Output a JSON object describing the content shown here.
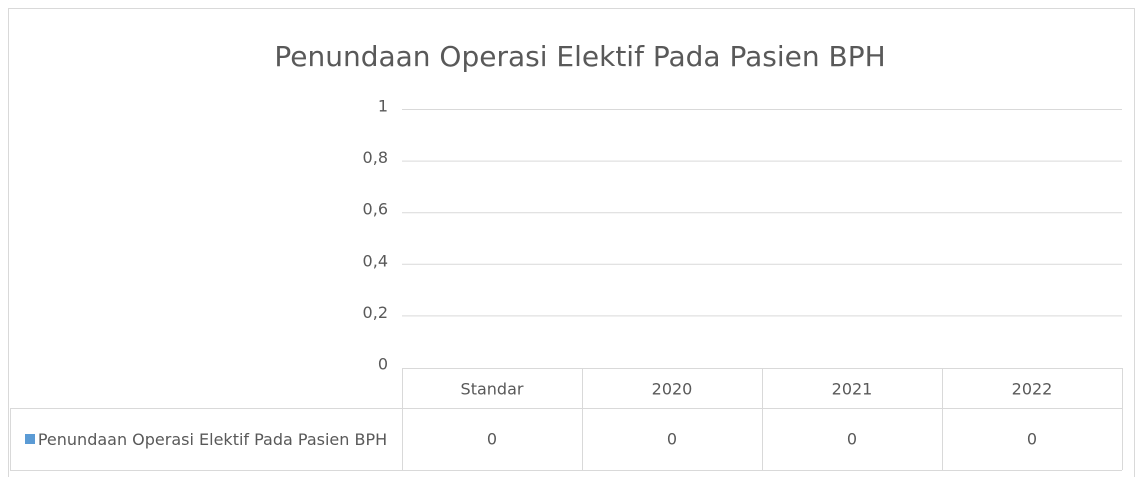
{
  "chart_data": {
    "type": "bar",
    "title": "Penundaan Operasi Elektif Pada Pasien BPH",
    "categories": [
      "Standar",
      "2020",
      "2021",
      "2022"
    ],
    "series": [
      {
        "name": "Penundaan Operasi Elektif Pada Pasien BPH",
        "color": "#5b9bd5",
        "values": [
          0,
          0,
          0,
          0
        ]
      }
    ],
    "ylim": [
      0,
      1
    ],
    "yticks": [
      0,
      {
        "value": 0.2,
        "label": "0,2"
      },
      {
        "value": 0.4,
        "label": "0,4"
      },
      {
        "value": 0.6,
        "label": "0,6"
      },
      {
        "value": 0.8,
        "label": "0,8"
      },
      1
    ],
    "grid": true
  }
}
